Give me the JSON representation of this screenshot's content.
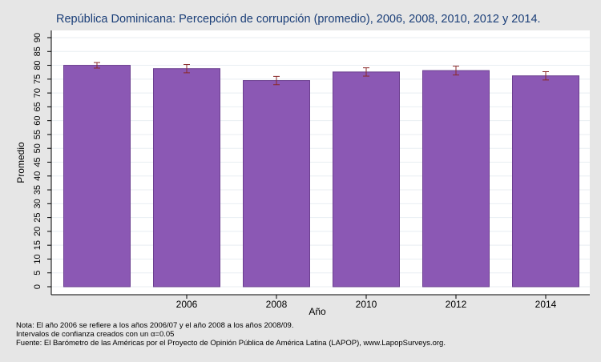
{
  "chart_data": {
    "type": "bar",
    "title": "República Dominicana: Percepción de corrupción (promedio), 2006, 2008, 2010, 2012 y 2014.",
    "xlabel": "Año",
    "ylabel": "Promedio",
    "categories": [
      "",
      "2006",
      "2008",
      "2010",
      "2012",
      "2014"
    ],
    "values": [
      80.0,
      78.8,
      74.5,
      77.6,
      78.1,
      76.2
    ],
    "error_low": [
      79.0,
      77.3,
      73.0,
      76.1,
      76.5,
      74.7
    ],
    "error_high": [
      81.0,
      80.3,
      76.0,
      79.1,
      79.7,
      77.7
    ],
    "ylim": [
      0,
      90
    ],
    "yticks": [
      0,
      5,
      10,
      15,
      20,
      25,
      30,
      35,
      40,
      45,
      50,
      55,
      60,
      65,
      70,
      75,
      80,
      85,
      90
    ],
    "grid": true,
    "bar_color": "#8b58b4",
    "errorbar_color": "#8b2a2a"
  },
  "notes": {
    "line1": "Nota: El año 2006 se refiere a los años 2006/07 y el año 2008 a los años 2008/09.",
    "line2": "Intervalos de confianza creados con un α=0.05",
    "line3": "Fuente: El Barómetro de las Américas por el Proyecto de Opinión Pública de América Latina (LAPOP), www.LapopSurveys.org."
  }
}
